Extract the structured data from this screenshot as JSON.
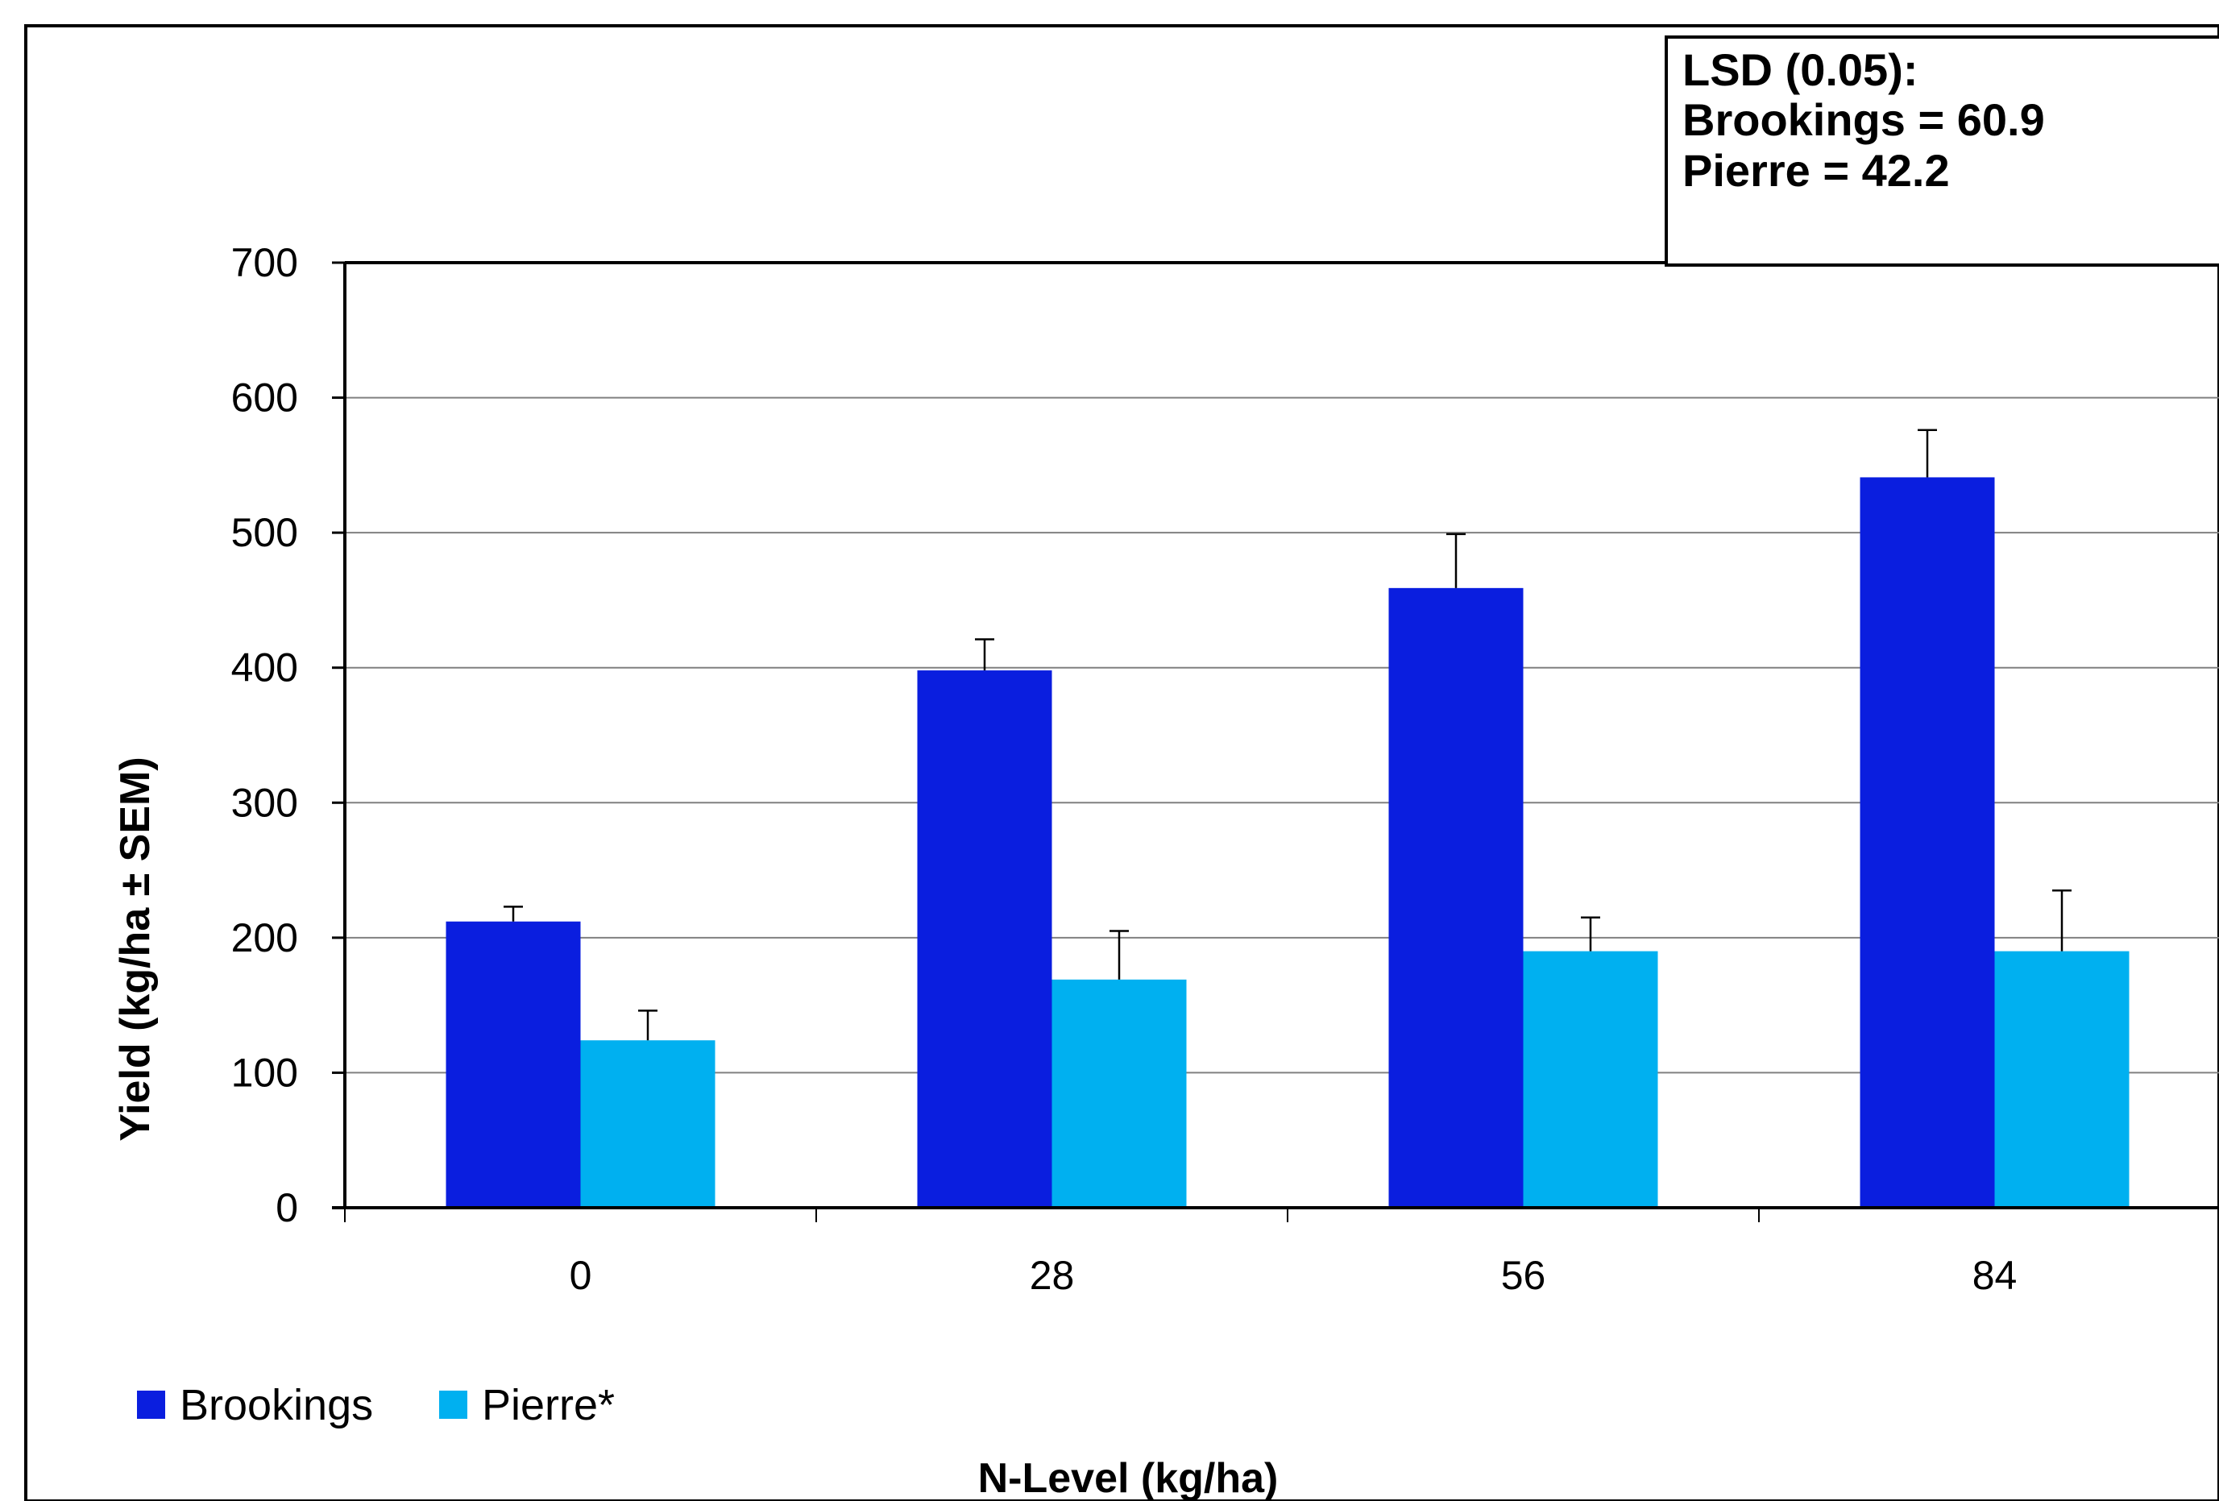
{
  "chart_data": {
    "type": "bar",
    "title": "",
    "xlabel": "N-Level (kg/ha)",
    "ylabel": "Yield (kg/ha ± SEM)",
    "categories": [
      "0",
      "28",
      "56",
      "84"
    ],
    "ylim": [
      0,
      700
    ],
    "yticks": [
      "0",
      "100",
      "200",
      "300",
      "400",
      "500",
      "600",
      "700"
    ],
    "grid": true,
    "legend_position": "bottom-left",
    "series": [
      {
        "name": "Brookings",
        "color": "#0A1EDF",
        "values": [
          212,
          398,
          459,
          541
        ],
        "errors": [
          11,
          23,
          40,
          35
        ]
      },
      {
        "name": "Pierre*",
        "color": "#00B0F0",
        "values": [
          124,
          169,
          190,
          190
        ],
        "errors": [
          22,
          36,
          25,
          45
        ]
      }
    ],
    "annotation": {
      "lines": [
        "LSD (0.05):",
        "Brookings = 60.9",
        "Pierre = 42.2"
      ]
    }
  }
}
